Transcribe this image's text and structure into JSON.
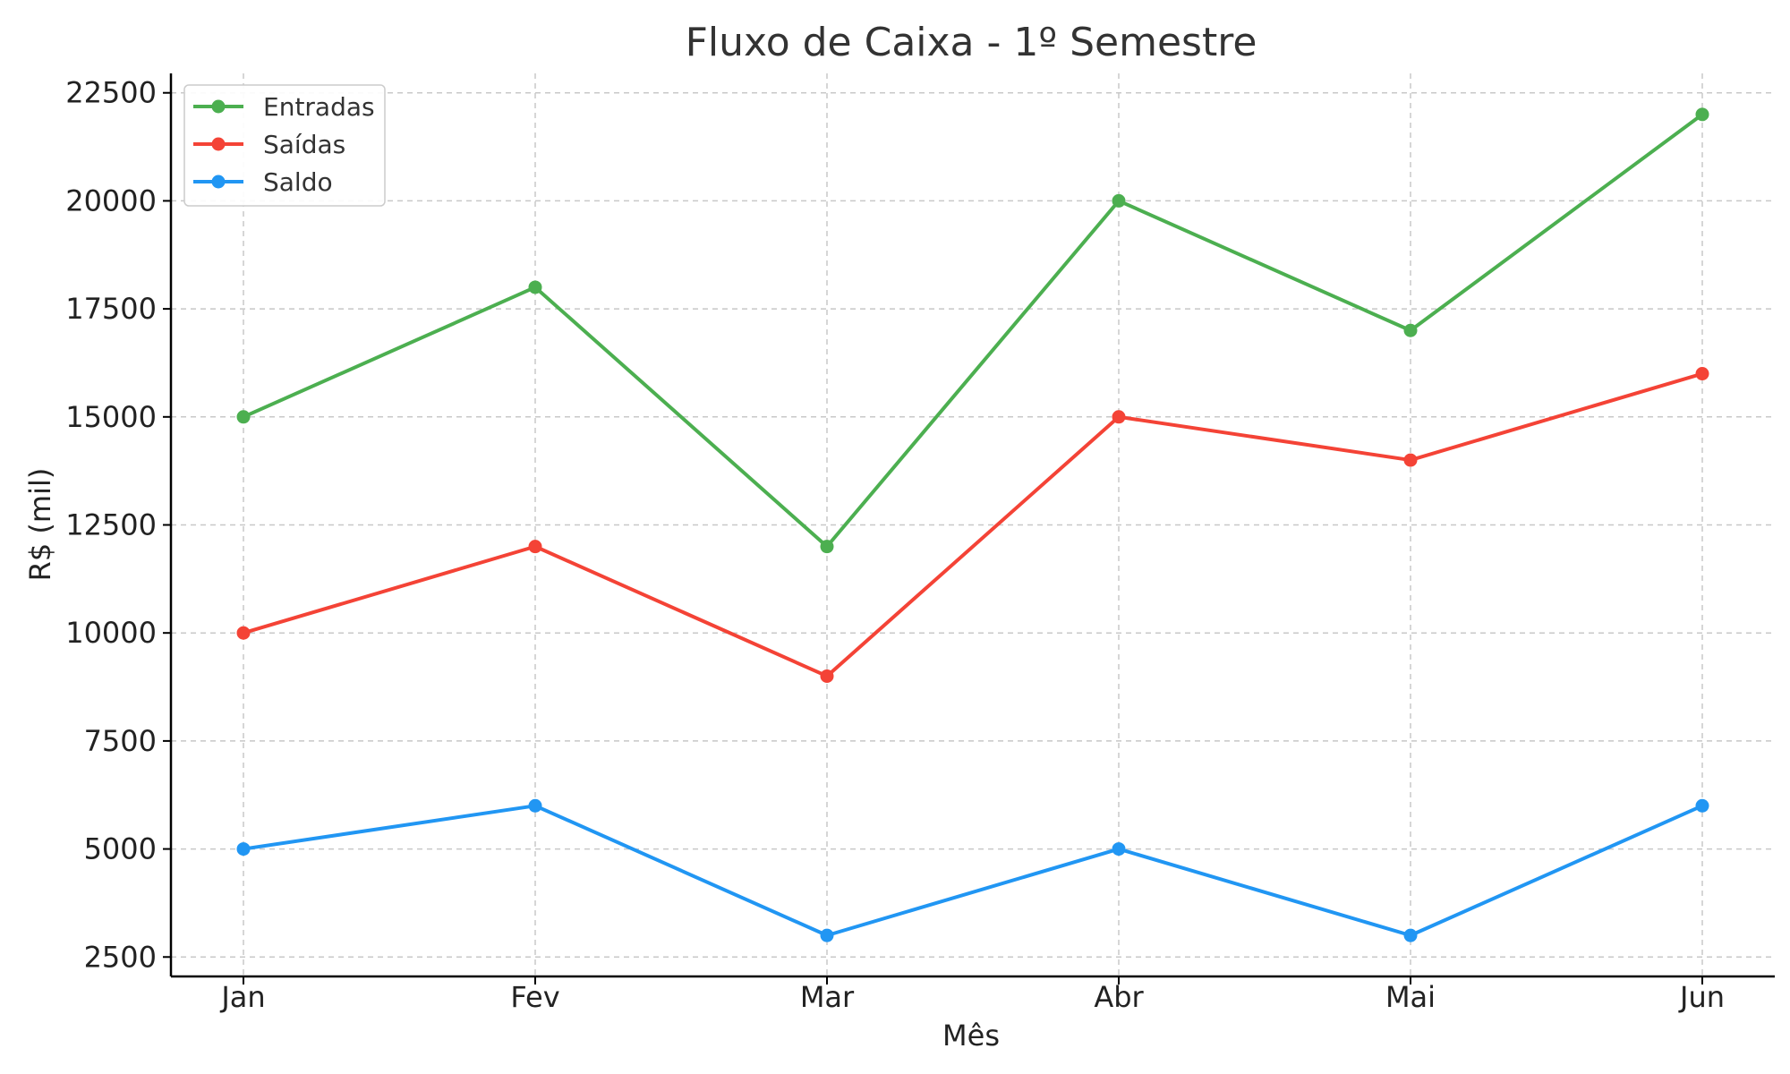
{
  "chart_data": {
    "type": "line",
    "title": "Fluxo de Caixa - 1º Semestre",
    "xlabel": "Mês",
    "ylabel": "R$ (mil)",
    "categories": [
      "Jan",
      "Fev",
      "Mar",
      "Abr",
      "Mai",
      "Jun"
    ],
    "yticks": [
      2500,
      5000,
      7500,
      10000,
      12500,
      15000,
      17500,
      20000,
      22500
    ],
    "ylim": [
      2050,
      22950
    ],
    "grid": true,
    "legend_position": "top-left",
    "series": [
      {
        "name": "Entradas",
        "color": "#4caf50",
        "values": [
          15000,
          18000,
          12000,
          20000,
          17000,
          22000
        ]
      },
      {
        "name": "Saídas",
        "color": "#f44336",
        "values": [
          10000,
          12000,
          9000,
          15000,
          14000,
          16000
        ]
      },
      {
        "name": "Saldo",
        "color": "#2196f3",
        "values": [
          5000,
          6000,
          3000,
          5000,
          3000,
          6000
        ]
      }
    ]
  }
}
